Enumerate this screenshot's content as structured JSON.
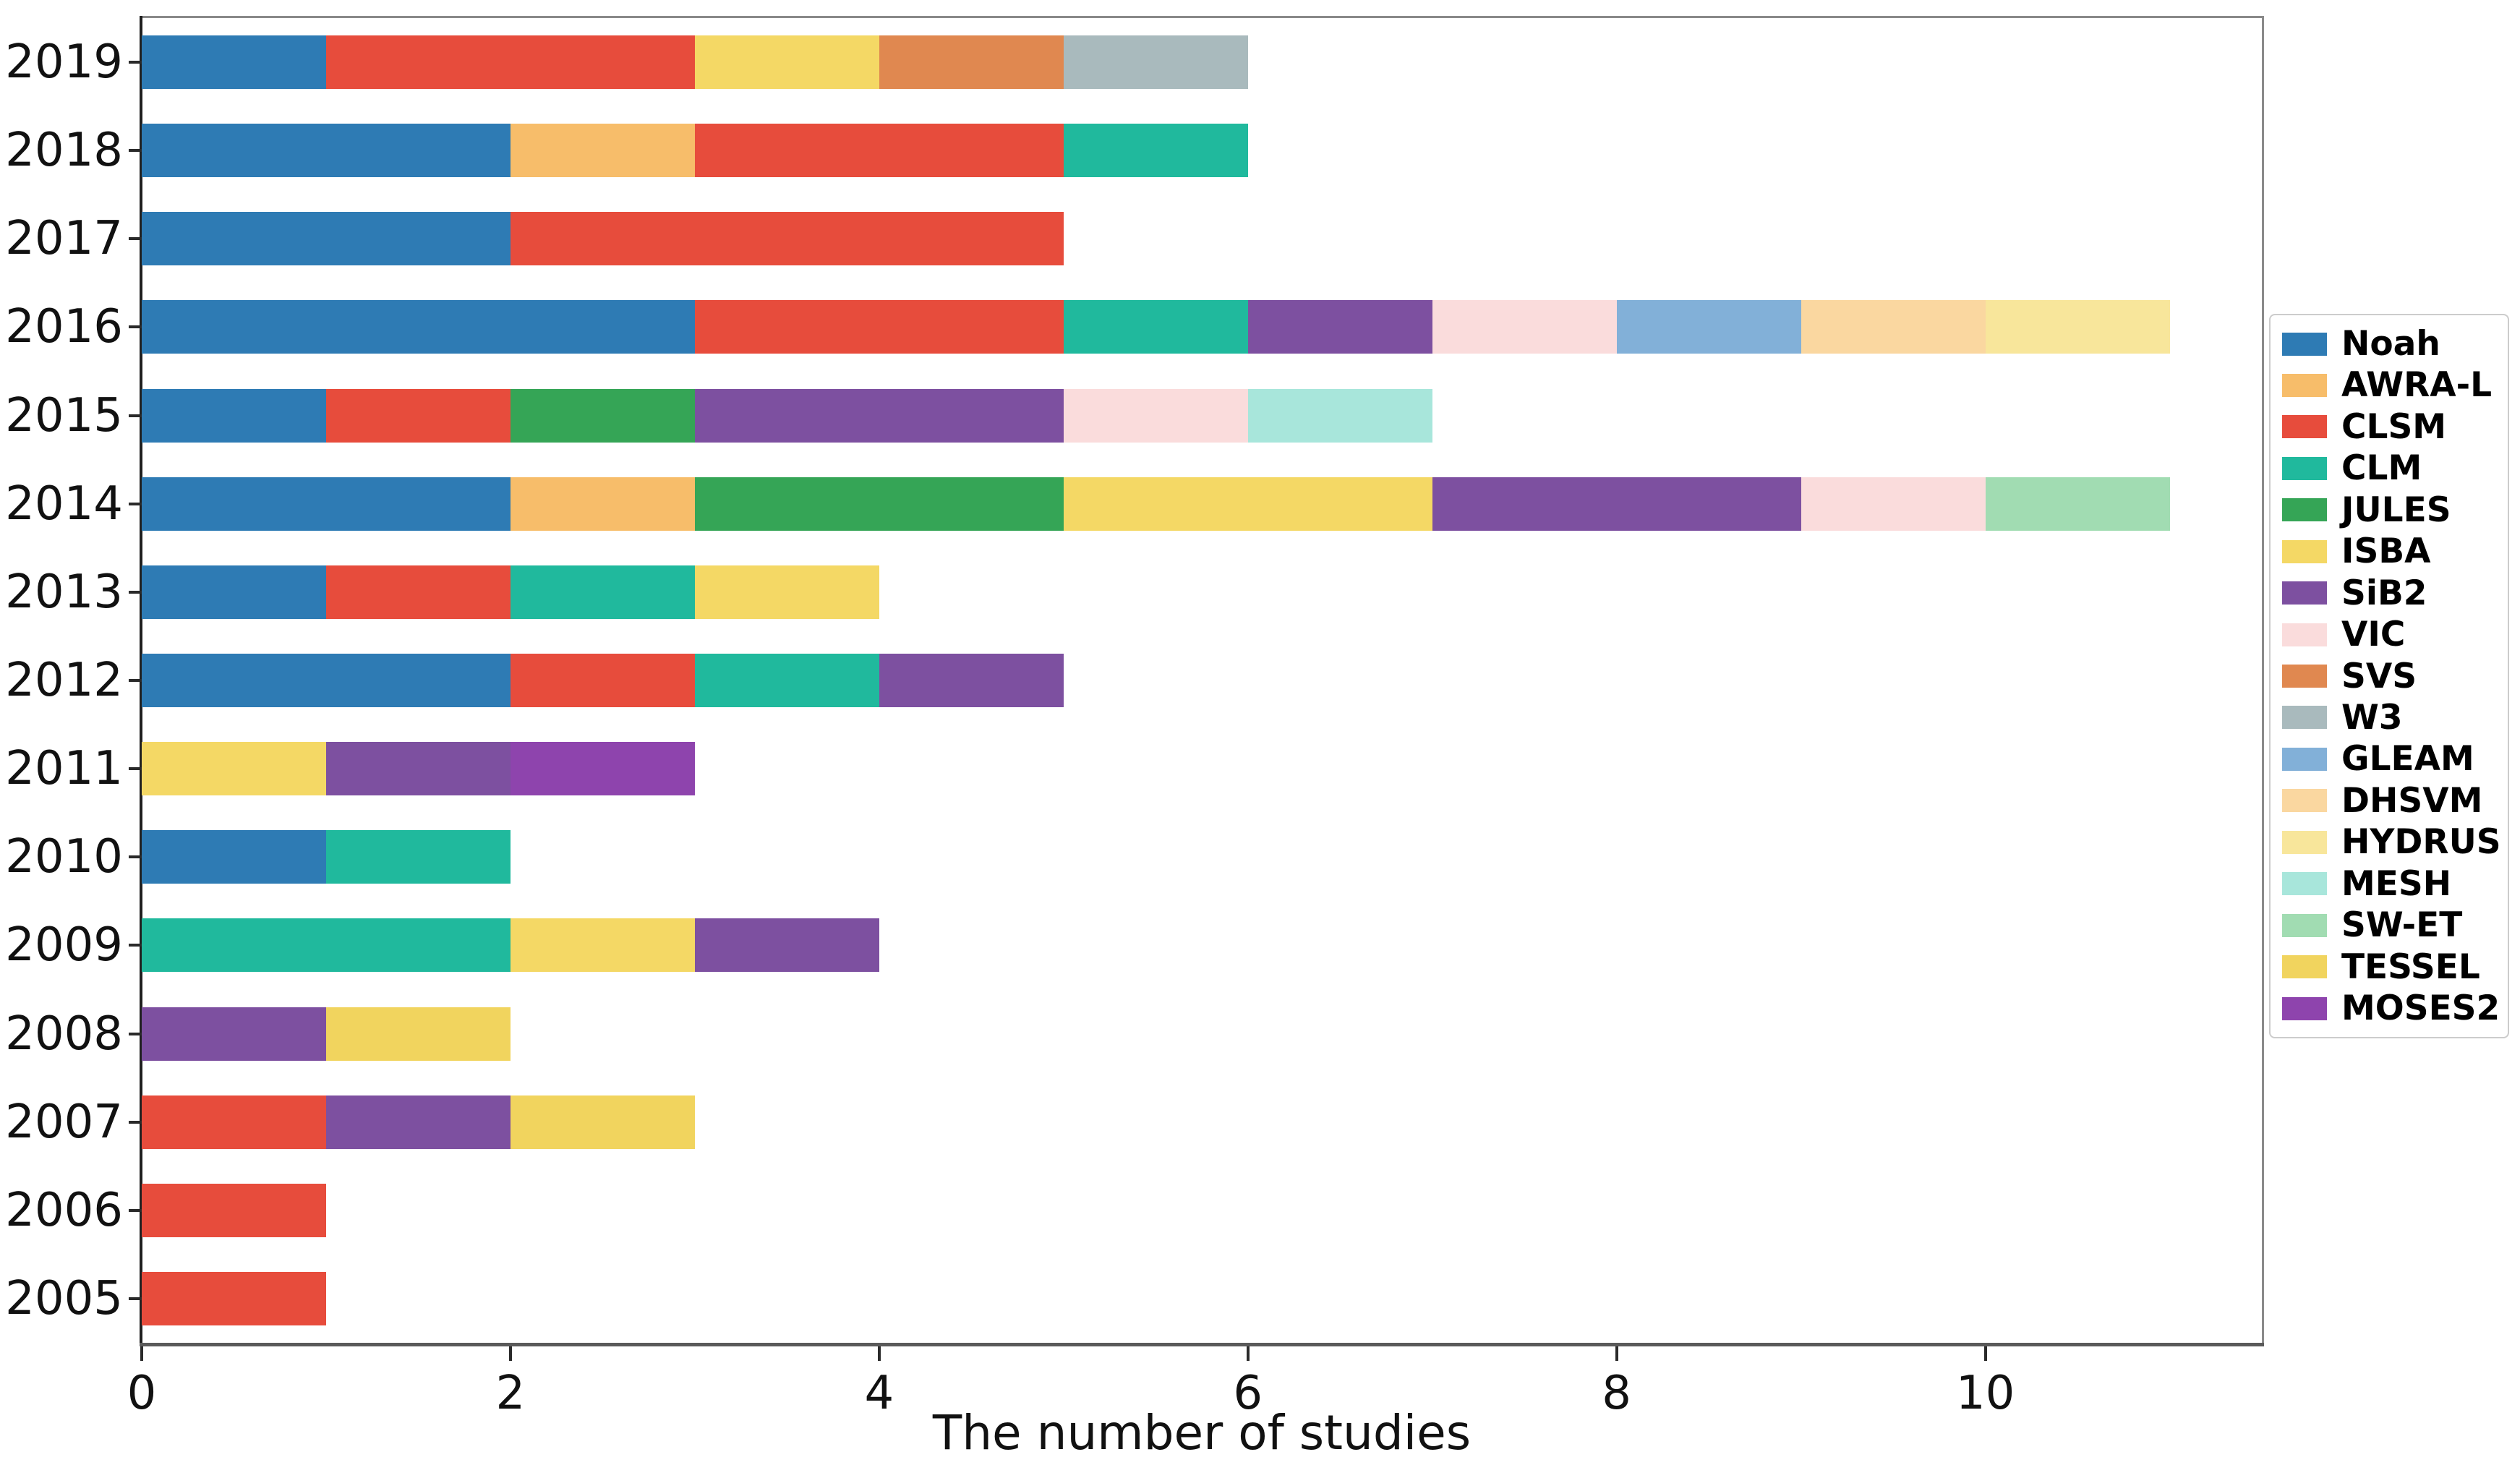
{
  "figure": {
    "x_axis_title": "The number of studies"
  },
  "chart_data": {
    "type": "bar",
    "orientation": "horizontal",
    "stacked": true,
    "title": "",
    "xlabel": "The number of studies",
    "ylabel": "",
    "xlim": [
      0,
      11.5
    ],
    "xticks": [
      "0",
      "2",
      "4",
      "6",
      "8",
      "10"
    ],
    "grid": false,
    "legend_position": "right-outside",
    "legend_entries": [
      {
        "label": "Noah",
        "color": "#2e7bb4"
      },
      {
        "label": "AWRA-L",
        "color": "#f7bd6a"
      },
      {
        "label": "CLSM",
        "color": "#e74c3c"
      },
      {
        "label": "CLM",
        "color": "#20b99d"
      },
      {
        "label": "JULES",
        "color": "#35a556"
      },
      {
        "label": "ISBA",
        "color": "#f4d865"
      },
      {
        "label": "SiB2",
        "color": "#7d50a0"
      },
      {
        "label": "VIC",
        "color": "#fadcdc"
      },
      {
        "label": "SVS",
        "color": "#e08850"
      },
      {
        "label": "W3",
        "color": "#a9babd"
      },
      {
        "label": "GLEAM",
        "color": "#82b0d8"
      },
      {
        "label": "DHSVM",
        "color": "#fad7a0"
      },
      {
        "label": "HYDRUS",
        "color": "#f8e69b"
      },
      {
        "label": "MESH",
        "color": "#a8e6db"
      },
      {
        "label": "SW-ET",
        "color": "#a1dcb2"
      },
      {
        "label": "TESSEL",
        "color": "#f1d45e"
      },
      {
        "label": "MOSES2",
        "color": "#8e44ad"
      }
    ],
    "rows": [
      {
        "year": "2019",
        "total": 6,
        "segments": [
          {
            "model": "Noah",
            "count": 1
          },
          {
            "model": "CLSM",
            "count": 2
          },
          {
            "model": "ISBA",
            "count": 1
          },
          {
            "model": "SVS",
            "count": 1
          },
          {
            "model": "W3",
            "count": 1
          }
        ]
      },
      {
        "year": "2018",
        "total": 6,
        "segments": [
          {
            "model": "Noah",
            "count": 2
          },
          {
            "model": "AWRA-L",
            "count": 1
          },
          {
            "model": "CLSM",
            "count": 2
          },
          {
            "model": "CLM",
            "count": 1
          }
        ]
      },
      {
        "year": "2017",
        "total": 5,
        "segments": [
          {
            "model": "Noah",
            "count": 2
          },
          {
            "model": "CLSM",
            "count": 3
          }
        ]
      },
      {
        "year": "2016",
        "total": 11,
        "segments": [
          {
            "model": "Noah",
            "count": 3
          },
          {
            "model": "CLSM",
            "count": 2
          },
          {
            "model": "CLM",
            "count": 1
          },
          {
            "model": "SiB2",
            "count": 1
          },
          {
            "model": "VIC",
            "count": 1
          },
          {
            "model": "GLEAM",
            "count": 1
          },
          {
            "model": "DHSVM",
            "count": 1
          },
          {
            "model": "HYDRUS",
            "count": 1
          }
        ]
      },
      {
        "year": "2015",
        "total": 7,
        "segments": [
          {
            "model": "Noah",
            "count": 1
          },
          {
            "model": "CLSM",
            "count": 1
          },
          {
            "model": "JULES",
            "count": 1
          },
          {
            "model": "SiB2",
            "count": 2
          },
          {
            "model": "VIC",
            "count": 1
          },
          {
            "model": "MESH",
            "count": 1
          }
        ]
      },
      {
        "year": "2014",
        "total": 11,
        "segments": [
          {
            "model": "Noah",
            "count": 2
          },
          {
            "model": "AWRA-L",
            "count": 1
          },
          {
            "model": "JULES",
            "count": 2
          },
          {
            "model": "ISBA",
            "count": 2
          },
          {
            "model": "SiB2",
            "count": 2
          },
          {
            "model": "VIC",
            "count": 1
          },
          {
            "model": "SW-ET",
            "count": 1
          }
        ]
      },
      {
        "year": "2013",
        "total": 4,
        "segments": [
          {
            "model": "Noah",
            "count": 1
          },
          {
            "model": "CLSM",
            "count": 1
          },
          {
            "model": "CLM",
            "count": 1
          },
          {
            "model": "ISBA",
            "count": 1
          }
        ]
      },
      {
        "year": "2012",
        "total": 5,
        "segments": [
          {
            "model": "Noah",
            "count": 2
          },
          {
            "model": "CLSM",
            "count": 1
          },
          {
            "model": "CLM",
            "count": 1
          },
          {
            "model": "SiB2",
            "count": 1
          }
        ]
      },
      {
        "year": "2011",
        "total": 3,
        "segments": [
          {
            "model": "ISBA",
            "count": 1
          },
          {
            "model": "SiB2",
            "count": 1
          },
          {
            "model": "MOSES2",
            "count": 1
          }
        ]
      },
      {
        "year": "2010",
        "total": 2,
        "segments": [
          {
            "model": "Noah",
            "count": 1
          },
          {
            "model": "CLM",
            "count": 1
          }
        ]
      },
      {
        "year": "2009",
        "total": 4,
        "segments": [
          {
            "model": "CLM",
            "count": 2
          },
          {
            "model": "ISBA",
            "count": 1
          },
          {
            "model": "SiB2",
            "count": 1
          }
        ]
      },
      {
        "year": "2008",
        "total": 2,
        "segments": [
          {
            "model": "SiB2",
            "count": 1
          },
          {
            "model": "TESSEL",
            "count": 1
          }
        ]
      },
      {
        "year": "2007",
        "total": 3,
        "segments": [
          {
            "model": "CLSM",
            "count": 1
          },
          {
            "model": "SiB2",
            "count": 1
          },
          {
            "model": "TESSEL",
            "count": 1
          }
        ]
      },
      {
        "year": "2006",
        "total": 1,
        "segments": [
          {
            "model": "CLSM",
            "count": 1
          }
        ]
      },
      {
        "year": "2005",
        "total": 1,
        "segments": [
          {
            "model": "CLSM",
            "count": 1
          }
        ]
      }
    ]
  }
}
